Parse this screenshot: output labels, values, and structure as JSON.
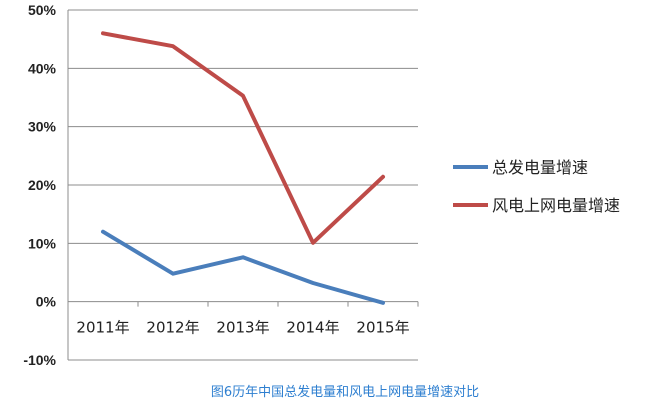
{
  "chart_data": {
    "type": "line",
    "title": "",
    "caption": "图6历年中国总发电量和风电上网电量增速对比",
    "xlabel": "",
    "ylabel": "",
    "categories": [
      "2011年",
      "2012年",
      "2013年",
      "2014年",
      "2015年"
    ],
    "ylim": [
      -10,
      50
    ],
    "yticks": [
      -10,
      0,
      10,
      20,
      30,
      40,
      50
    ],
    "ytick_labels": [
      "-10%",
      "0%",
      "10%",
      "20%",
      "30%",
      "40%",
      "50%"
    ],
    "grid": true,
    "legend_position": "right",
    "series": [
      {
        "name": "总发电量增速",
        "color": "#4a7ebb",
        "values": [
          12,
          4.8,
          7.6,
          3.2,
          -0.2
        ]
      },
      {
        "name": "风电上网电量增速",
        "color": "#be4b48",
        "values": [
          46,
          43.8,
          35.3,
          10.1,
          21.4
        ]
      }
    ]
  }
}
